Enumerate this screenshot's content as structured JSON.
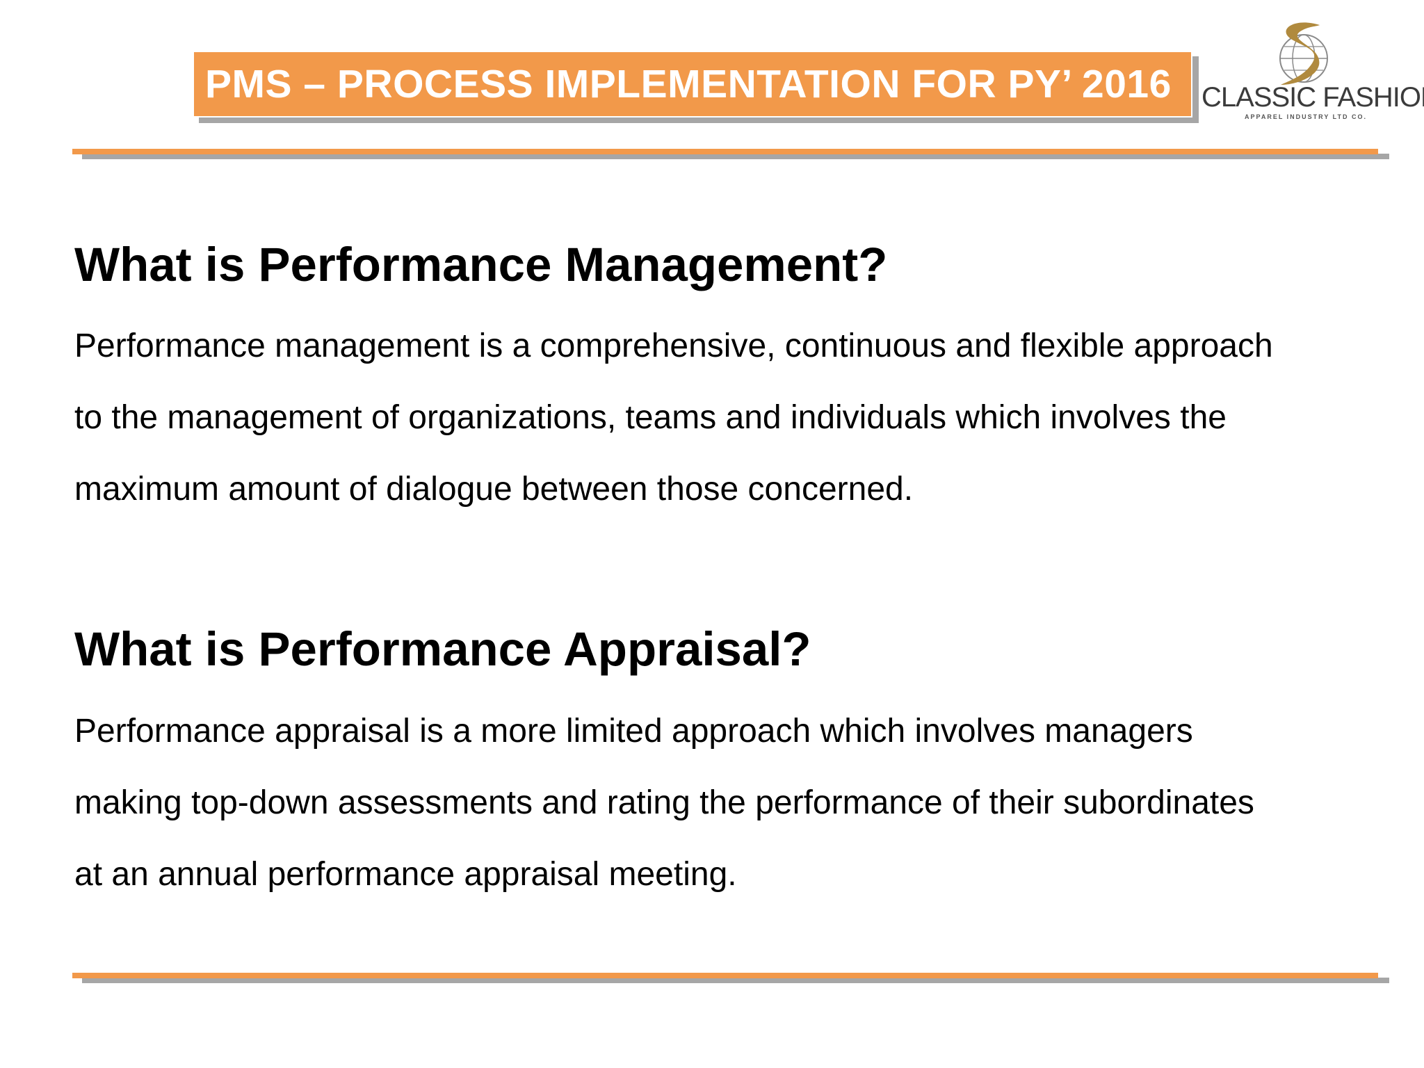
{
  "slide": {
    "title": "PMS – PROCESS IMPLEMENTATION FOR PY’ 2016",
    "logo": {
      "name": "CLASSIC FASHION",
      "subtitle": "APPAREL INDUSTRY LTD CO.",
      "icon": "globe-swoosh-logo-icon"
    },
    "colors": {
      "accent": "#f2994a",
      "shadow": "#a6a6a6",
      "logo_gold": "#b08a3e"
    },
    "sections": [
      {
        "heading": "What is Performance Management?",
        "lines": [
          "Performance management is a comprehensive, continuous and flexible approach",
          "to the management of organizations, teams and individuals which involves the",
          "maximum amount of dialogue between those concerned."
        ]
      },
      {
        "heading": "What is Performance Appraisal?",
        "lines": [
          "Performance appraisal is a more limited approach which involves managers",
          "making top-down assessments and rating the performance of their subordinates",
          "at an annual performance appraisal meeting."
        ]
      }
    ]
  }
}
